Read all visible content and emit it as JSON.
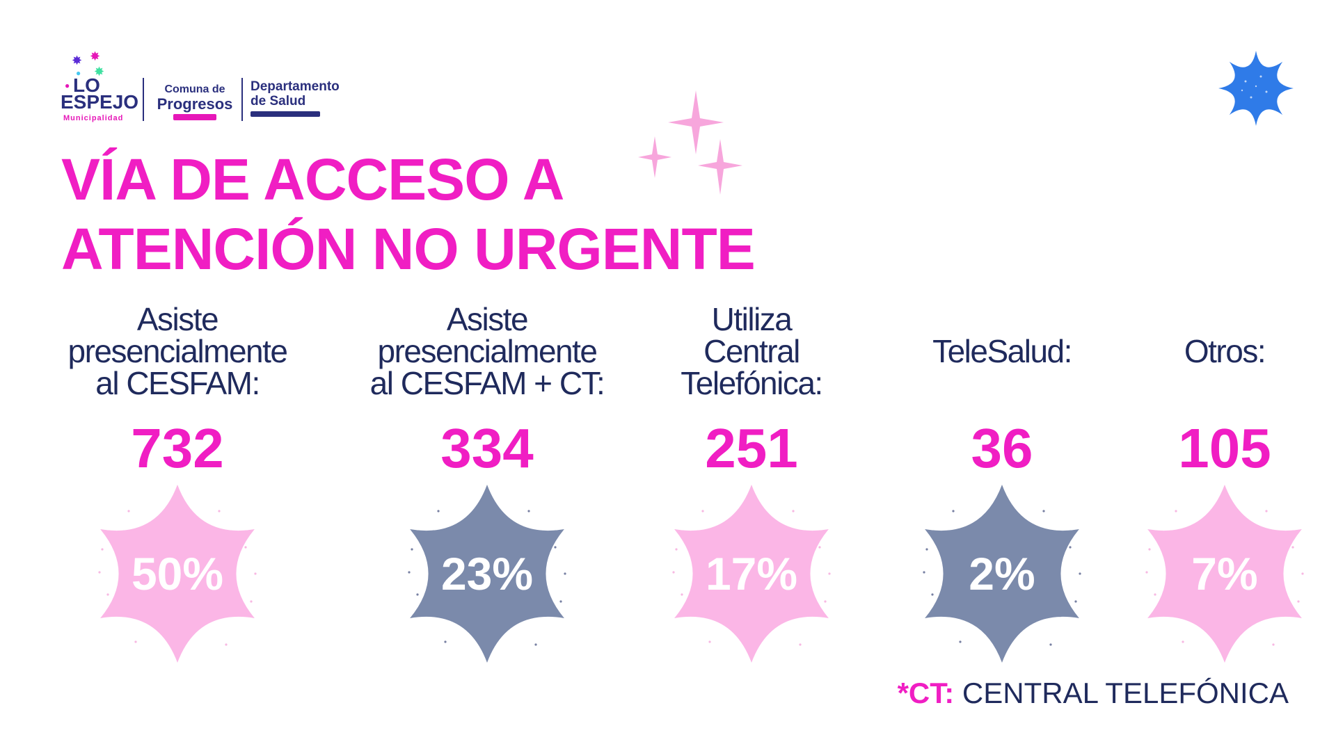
{
  "logos": {
    "lo_espejo": {
      "line1": "LO",
      "line2": "ESPEJO",
      "line3": "Municipalidad"
    },
    "comuna": {
      "line1": "Comuna de",
      "line2": "Progresos"
    },
    "departamento": {
      "line1": "Departamento",
      "line2": "de Salud"
    }
  },
  "title": {
    "line1": "VÍA DE ACCESO A",
    "line2": "ATENCIÓN NO URGENTE"
  },
  "colors": {
    "magenta": "#f01ec3",
    "navy": "#1f2a5c",
    "pink_badge": "#fbb6e6",
    "slate_badge": "#7b8aab",
    "blue_star": "#2f7be8"
  },
  "chart_data": {
    "type": "table",
    "categories": [
      "Asiste presencialmente al CESFAM:",
      "Asiste presencialmente al CESFAM + CT:",
      "Utiliza Central Telefónica:",
      "TeleSalud:",
      "Otros:"
    ],
    "series": [
      {
        "name": "count",
        "values": [
          732,
          334,
          251,
          36,
          105
        ]
      },
      {
        "name": "percent",
        "values": [
          50,
          23,
          17,
          2,
          7
        ]
      }
    ],
    "items": [
      {
        "label": "Asiste\npresencialmente\nal CESFAM:",
        "count": "732",
        "pct": "50%",
        "badge": "pink"
      },
      {
        "label": "Asiste\npresencialmente\nal CESFAM + CT:",
        "count": "334",
        "pct": "23%",
        "badge": "slate"
      },
      {
        "label": "Utiliza\nCentral\nTelefónica:",
        "count": "251",
        "pct": "17%",
        "badge": "pink"
      },
      {
        "label": "TeleSalud:",
        "count": "36",
        "pct": "2%",
        "badge": "slate"
      },
      {
        "label": "Otros:",
        "count": "105",
        "pct": "7%",
        "badge": "pink"
      }
    ]
  },
  "footnote": {
    "abbr": "*CT:",
    "text": " CENTRAL TELEFÓNICA"
  }
}
